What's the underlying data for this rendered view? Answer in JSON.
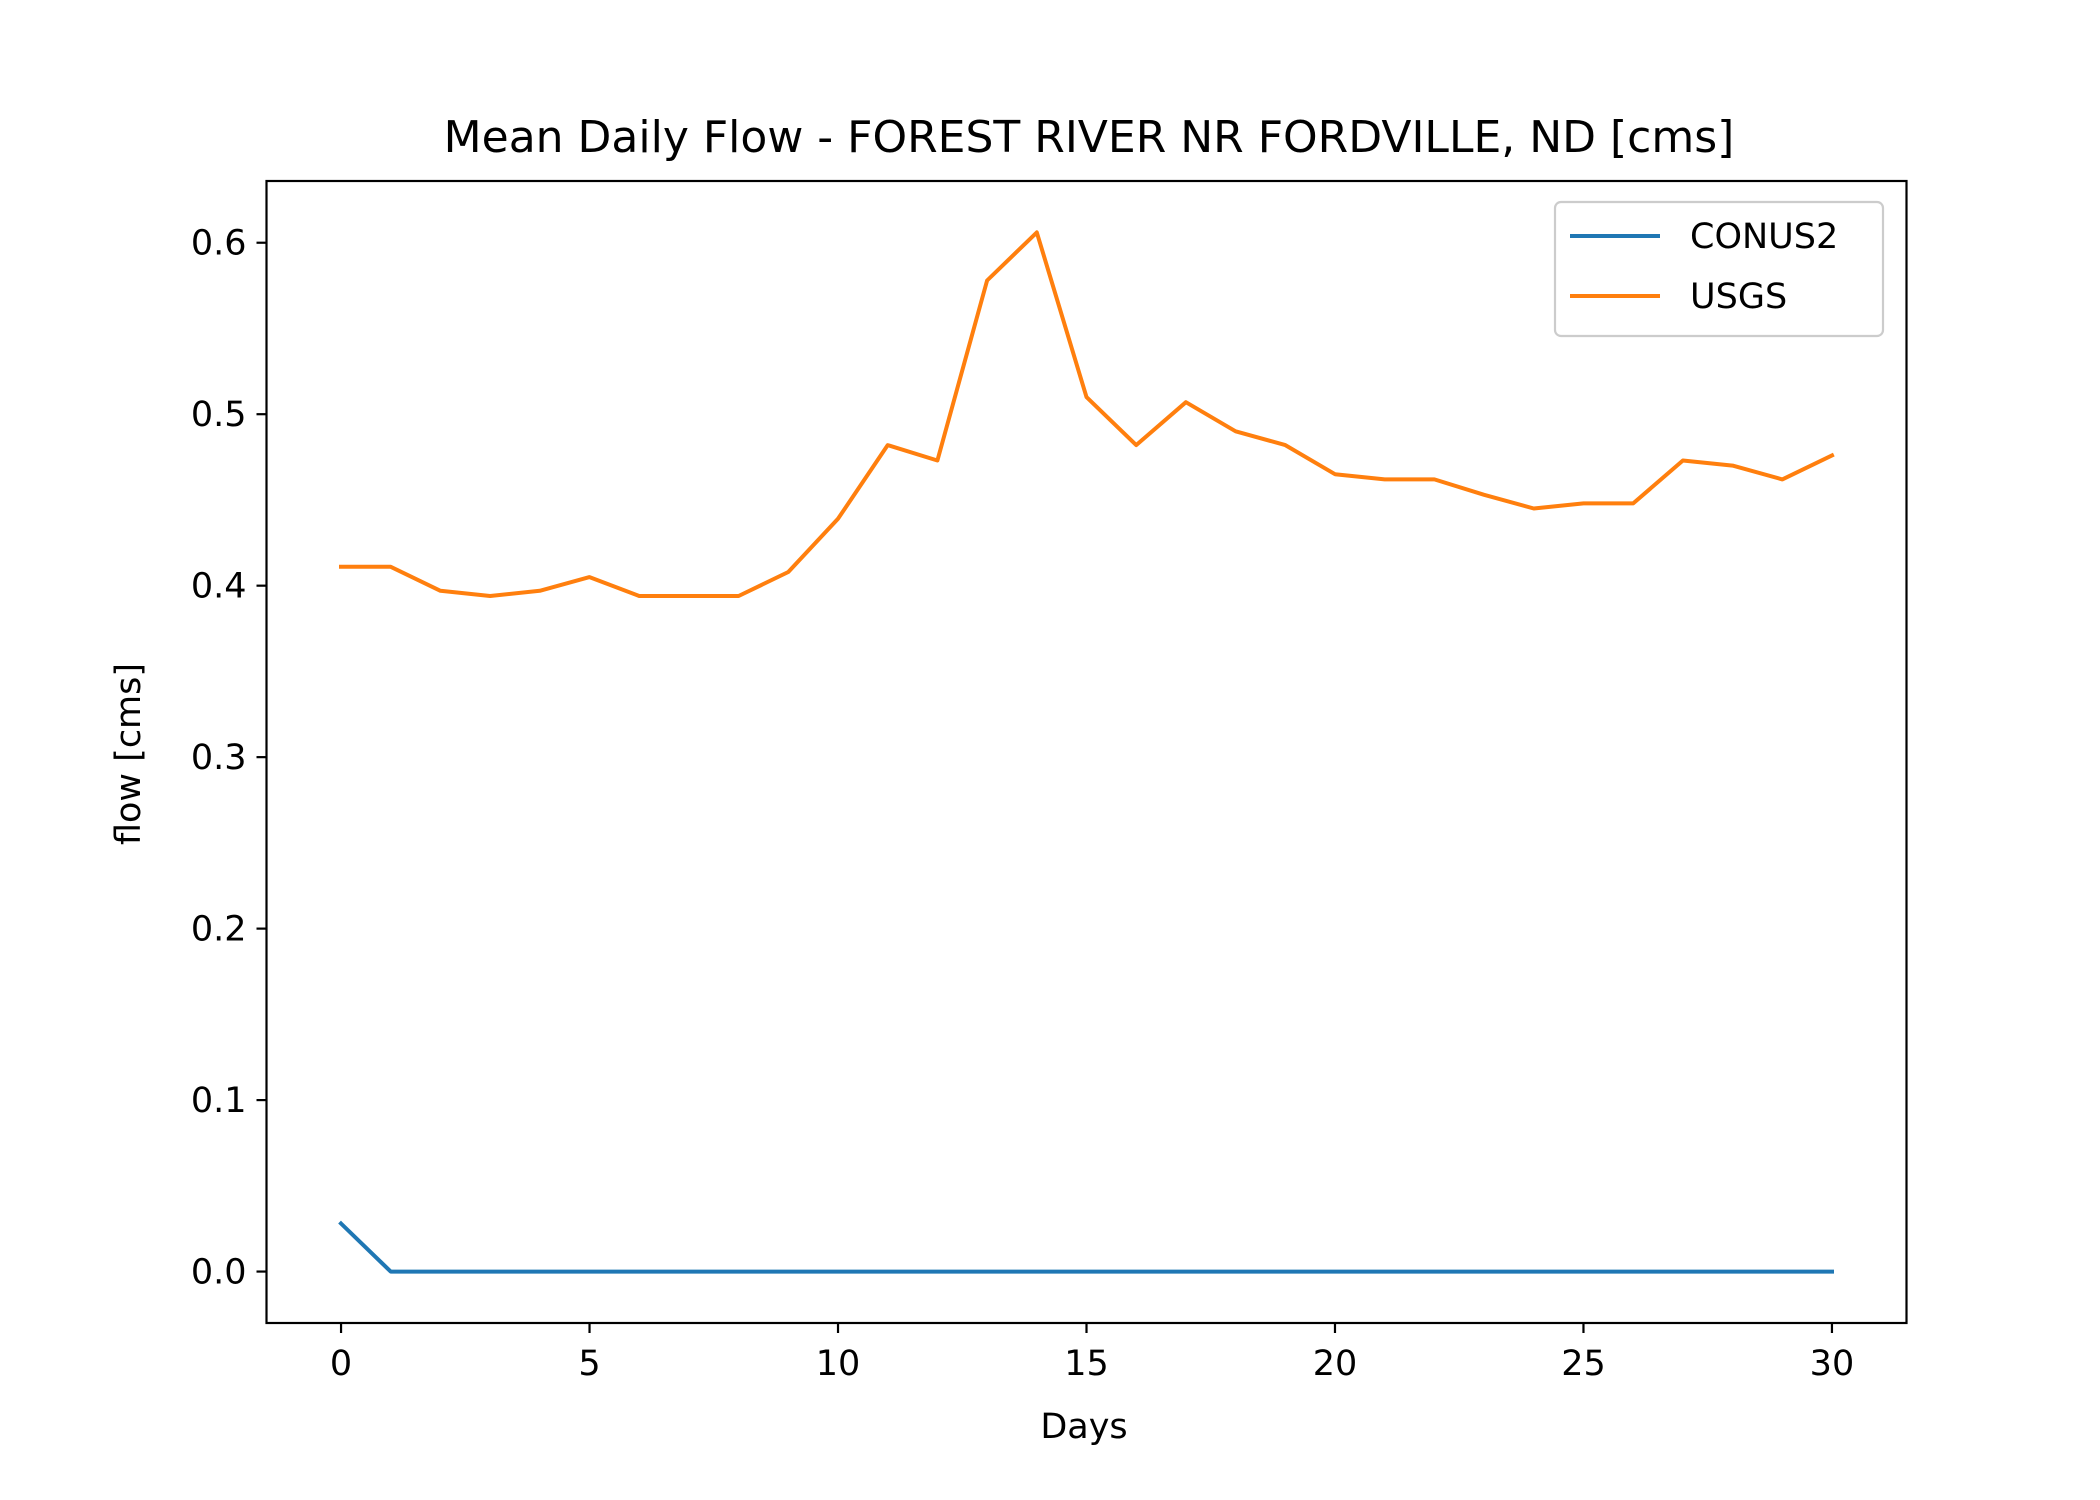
{
  "chart_data": {
    "type": "line",
    "title": "Mean Daily Flow - FOREST RIVER NR FORDVILLE, ND [cms]",
    "xlabel": "Days",
    "ylabel": "flow [cms]",
    "xlim": [
      -1.5,
      31.5
    ],
    "ylim": [
      -0.03,
      0.636
    ],
    "xticks": [
      0,
      5,
      10,
      15,
      20,
      25,
      30
    ],
    "xtick_labels": [
      "0",
      "5",
      "10",
      "15",
      "20",
      "25",
      "30"
    ],
    "yticks": [
      0.0,
      0.1,
      0.2,
      0.3,
      0.4,
      0.5,
      0.6
    ],
    "ytick_labels": [
      "0.0",
      "0.1",
      "0.2",
      "0.3",
      "0.4",
      "0.5",
      "0.6"
    ],
    "grid": false,
    "legend_position": "upper right",
    "x": [
      0,
      1,
      2,
      3,
      4,
      5,
      6,
      7,
      8,
      9,
      10,
      11,
      12,
      13,
      14,
      15,
      16,
      17,
      18,
      19,
      20,
      21,
      22,
      23,
      24,
      25,
      26,
      27,
      28,
      29,
      30
    ],
    "series": [
      {
        "name": "CONUS2",
        "color": "#1f77b4",
        "values": [
          0.028,
          0,
          0,
          0,
          0,
          0,
          0,
          0,
          0,
          0,
          0,
          0,
          0,
          0,
          0,
          0,
          0,
          0,
          0,
          0,
          0,
          0,
          0,
          0,
          0,
          0,
          0,
          0,
          0,
          0,
          0
        ]
      },
      {
        "name": "USGS",
        "color": "#ff7f0e",
        "values": [
          0.411,
          0.411,
          0.397,
          0.394,
          0.397,
          0.405,
          0.394,
          0.394,
          0.394,
          0.408,
          0.439,
          0.482,
          0.473,
          0.578,
          0.606,
          0.51,
          0.482,
          0.507,
          0.49,
          0.482,
          0.465,
          0.462,
          0.462,
          0.453,
          0.445,
          0.448,
          0.448,
          0.473,
          0.47,
          0.462,
          0.476
        ]
      }
    ]
  }
}
